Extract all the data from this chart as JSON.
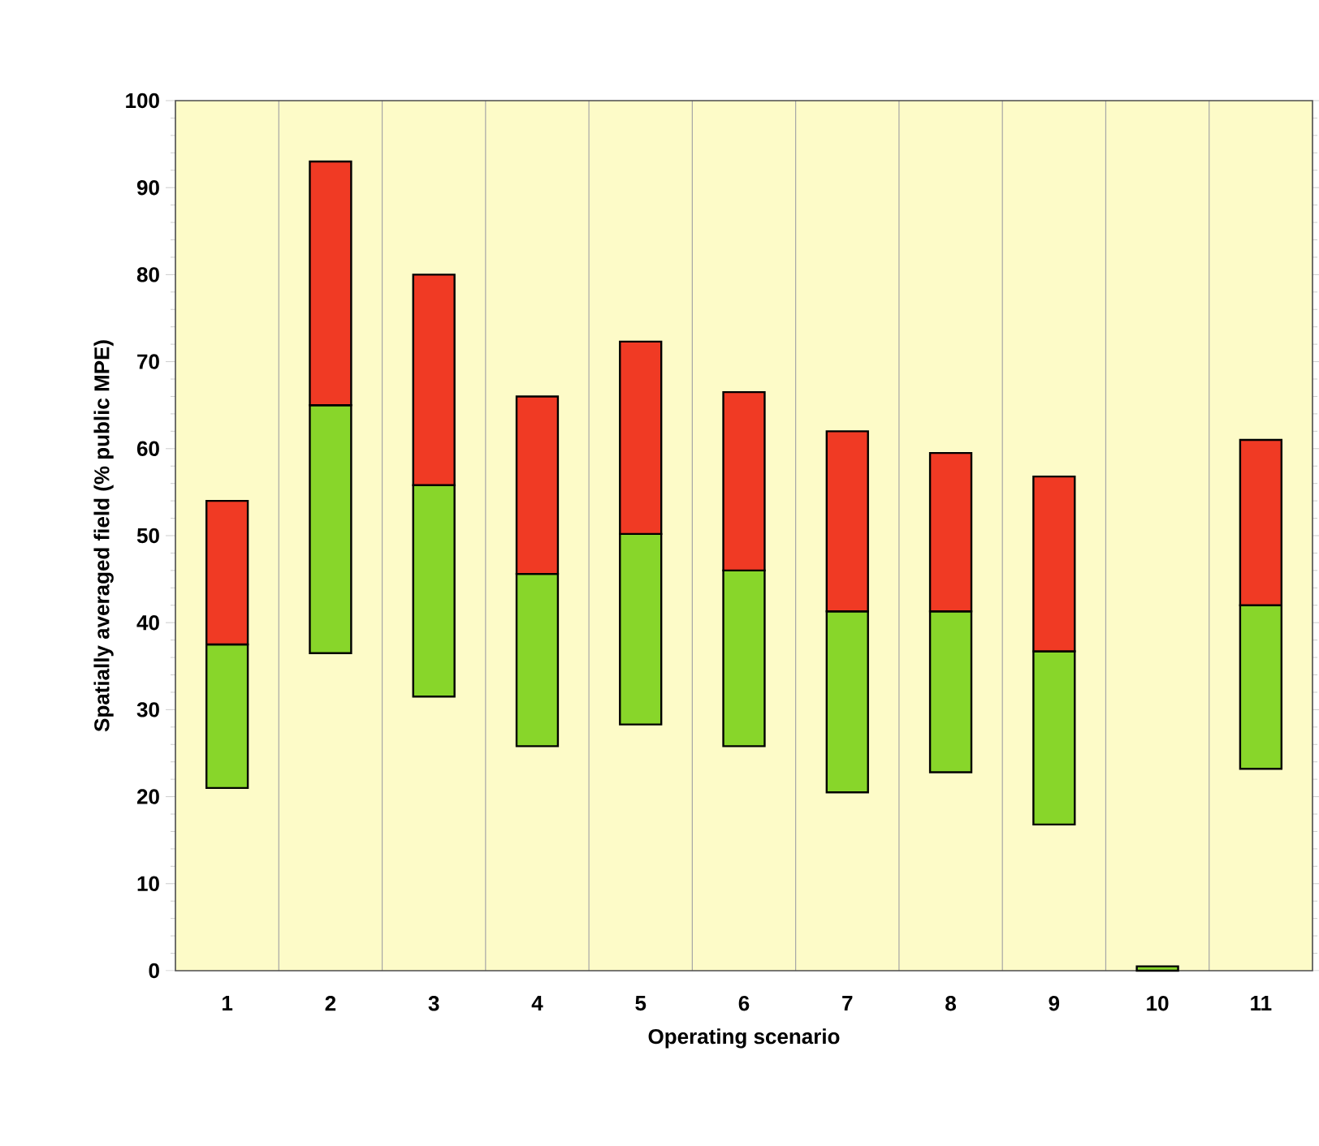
{
  "chart_data": {
    "type": "bar",
    "xlabel": "Operating scenario",
    "ylabel": "Spatially averaged field (% public MPE)",
    "categories": [
      "1",
      "2",
      "3",
      "4",
      "5",
      "6",
      "7",
      "8",
      "9",
      "10",
      "11"
    ],
    "series": [
      {
        "color": "#88d62a",
        "base": [
          21,
          36.5,
          31.5,
          25.8,
          28.3,
          25.8,
          20.5,
          22.8,
          16.8,
          0,
          23.2
        ],
        "values": [
          16.5,
          28.5,
          24.3,
          19.8,
          21.9,
          20.2,
          20.8,
          18.5,
          19.9,
          0.5,
          18.8
        ]
      },
      {
        "color": "#f03a24",
        "base": [
          37.5,
          65,
          55.8,
          45.6,
          50.2,
          46,
          41.3,
          41.3,
          36.7,
          null,
          42
        ],
        "values": [
          16.5,
          28,
          24.2,
          20.4,
          22.1,
          20.5,
          20.7,
          18.2,
          20.1,
          null,
          19
        ]
      }
    ],
    "ylim": [
      0,
      100
    ],
    "yticks": [
      0,
      10,
      20,
      30,
      40,
      50,
      60,
      70,
      80,
      90,
      100
    ],
    "grid": "x"
  }
}
